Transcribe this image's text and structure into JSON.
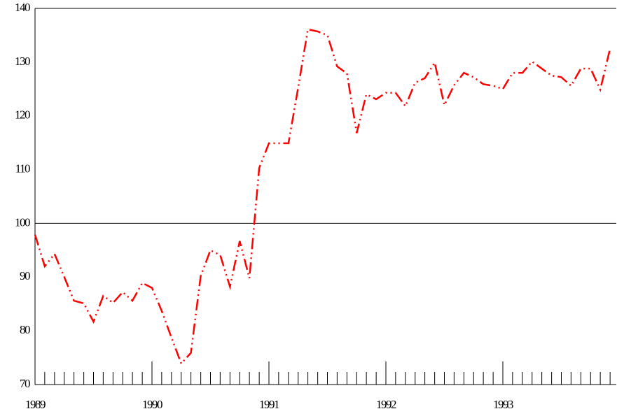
{
  "chart_data": {
    "type": "line",
    "x": [
      1989,
      1989.083,
      1989.167,
      1989.25,
      1989.333,
      1989.417,
      1989.5,
      1989.583,
      1989.667,
      1989.75,
      1989.833,
      1989.917,
      1990,
      1990.083,
      1990.167,
      1990.25,
      1990.333,
      1990.417,
      1990.5,
      1990.583,
      1990.667,
      1990.75,
      1990.833,
      1990.917,
      1991,
      1991.083,
      1991.167,
      1991.25,
      1991.333,
      1991.417,
      1991.5,
      1991.583,
      1991.667,
      1991.75,
      1991.833,
      1991.917,
      1992,
      1992.083,
      1992.167,
      1992.25,
      1992.333,
      1992.417,
      1992.5,
      1992.583,
      1992.667,
      1992.75,
      1992.833,
      1992.917,
      1993,
      1993.083,
      1993.167,
      1993.25,
      1993.333,
      1993.417,
      1993.5,
      1993.583,
      1993.667,
      1993.75,
      1993.833,
      1993.917
    ],
    "series": [
      {
        "color": "#ff0000",
        "values": [
          97.9,
          92,
          94.3,
          90,
          85.6,
          85.1,
          81.7,
          86.5,
          85.2,
          87.2,
          85.6,
          88.9,
          88,
          83.7,
          78.7,
          73.9,
          75.9,
          90.2,
          95,
          94.1,
          88.2,
          96.7,
          89.8,
          110.3,
          114.9,
          114.9,
          114.9,
          125.3,
          136.1,
          135.7,
          135,
          129.2,
          127.9,
          116.8,
          124,
          123.1,
          124.3,
          124.3,
          121.8,
          126.2,
          127,
          129.9,
          122,
          125.7,
          128,
          127.2,
          125.9,
          125.6,
          125,
          128,
          128,
          130.1,
          128.8,
          127.5,
          127.2,
          125.6,
          128.8,
          128.8,
          124.9,
          132.5
        ]
      }
    ],
    "xlim": [
      1989,
      1993.97
    ],
    "xticks": [
      1989,
      1990,
      1991,
      1992,
      1993
    ],
    "ylim": [
      70,
      140
    ],
    "yticks": [
      70,
      80,
      90,
      100,
      110,
      120,
      130,
      140
    ],
    "reference_line": 100
  }
}
